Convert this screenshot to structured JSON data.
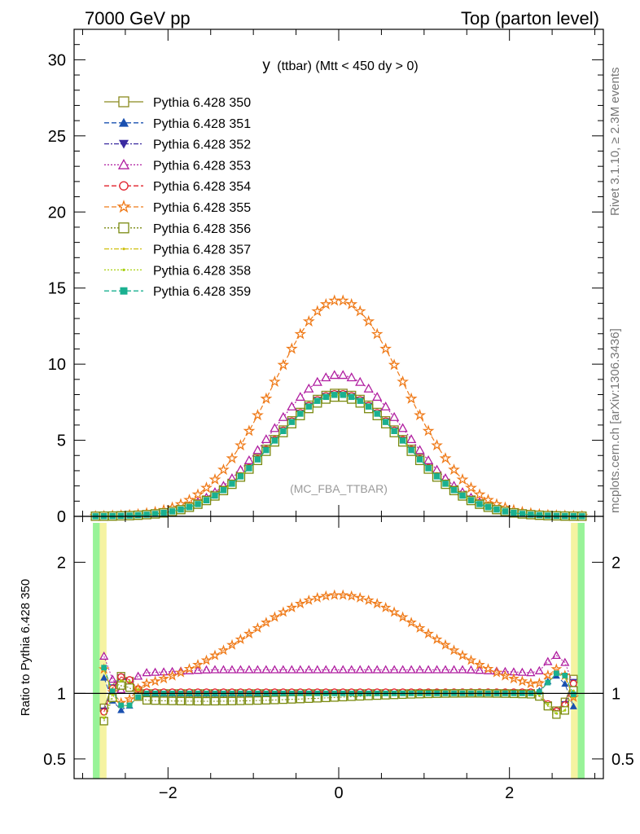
{
  "header": {
    "left": "7000 GeV pp",
    "right": "Top (parton level)"
  },
  "side": {
    "rivet": "Rivet 3.1.10, ≥ 2.3M events",
    "mcplots": "mcplots.cern.ch [arXiv:1306.3436]"
  },
  "chart_data": {
    "type": "line",
    "title_main": "y",
    "title_rest": "(ttbar) (Mtt < 450 dy > 0)",
    "watermark": "(MC_FBA_TTBAR)",
    "ratio_ylabel": "Ratio to Pythia 6.428 350",
    "xlim": [
      -3.1,
      3.1
    ],
    "ylim": [
      0,
      32
    ],
    "ratio_ylim": [
      0.35,
      2.35
    ],
    "xticks": [
      "−2",
      "0",
      "2"
    ],
    "yticks": [
      "0",
      "5",
      "10",
      "15",
      "20",
      "25",
      "30"
    ],
    "ratio_yticks": [
      "0.5",
      "1",
      "2"
    ],
    "legend_position": "top-left",
    "series": [
      {
        "name": "Pythia 6.428 350",
        "color": "#8a8a1e",
        "marker": "square-open",
        "dash": "solid",
        "norm": 8.1,
        "ratio_level": 1.0
      },
      {
        "name": "Pythia 6.428 351",
        "color": "#1a50b0",
        "marker": "triangle",
        "dash": "dashed",
        "norm": 8.0,
        "ratio_level": 1.0
      },
      {
        "name": "Pythia 6.428 352",
        "color": "#3a2aa0",
        "marker": "triangle-down",
        "dash": "dashdot",
        "norm": 8.05,
        "ratio_level": 1.0
      },
      {
        "name": "Pythia 6.428 353",
        "color": "#b01ea0",
        "marker": "triangle-open",
        "dash": "dotted",
        "norm": 9.3,
        "ratio_level": 1.18
      },
      {
        "name": "Pythia 6.428 354",
        "color": "#e01e2a",
        "marker": "circle-open",
        "dash": "dashed",
        "norm": 8.05,
        "ratio_level": 1.01
      },
      {
        "name": "Pythia 6.428 355",
        "color": "#ef7a18",
        "marker": "star-open",
        "dash": "dashed",
        "norm": 14.2,
        "ratio_level": 1.75
      },
      {
        "name": "Pythia 6.428 356",
        "color": "#7a8a10",
        "marker": "square-open",
        "dash": "dotted",
        "norm": 7.85,
        "ratio_level": 0.97
      },
      {
        "name": "Pythia 6.428 357",
        "color": "#cfc010",
        "marker": "dot",
        "dash": "dashdot",
        "norm": 8.0,
        "ratio_level": 1.0
      },
      {
        "name": "Pythia 6.428 358",
        "color": "#a8d010",
        "marker": "dot",
        "dash": "dotted",
        "norm": 8.0,
        "ratio_level": 1.0
      },
      {
        "name": "Pythia 6.428 359",
        "color": "#1ab090",
        "marker": "square",
        "dash": "dashed",
        "norm": 8.0,
        "ratio_level": 1.0
      }
    ]
  }
}
